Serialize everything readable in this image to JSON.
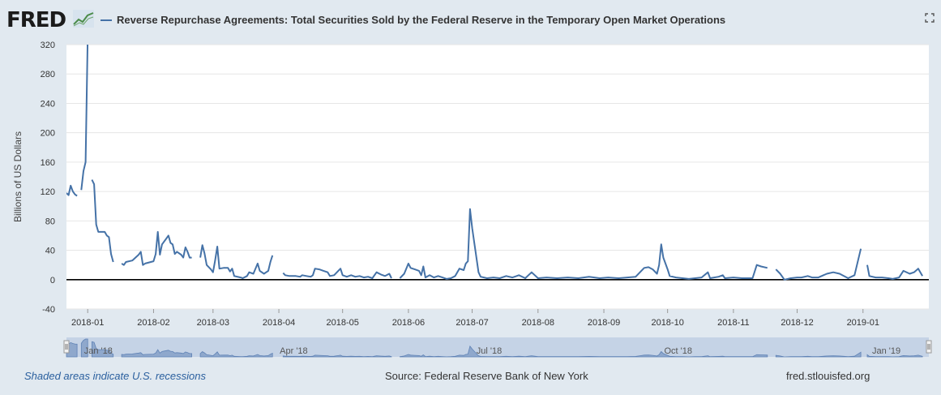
{
  "header": {
    "logo_text": "FRED",
    "logo_icon": "line-chart-icon",
    "series_title": "Reverse Repurchase Agreements: Total Securities Sold by the Federal Reserve in the Temporary Open Market Operations",
    "series_color": "#4572a7",
    "fullscreen_icon": "fullscreen-icon"
  },
  "footer": {
    "recession_note": "Shaded areas indicate U.S. recessions",
    "source": "Source: Federal Reserve Bank of New York",
    "site": "fred.stlouisfed.org"
  },
  "chart_data": {
    "type": "line",
    "title": "",
    "ylabel": "Billions of US Dollars",
    "xlabel": "",
    "ylim": [
      -40,
      320
    ],
    "yticks": [
      -40,
      0,
      40,
      80,
      120,
      160,
      200,
      240,
      280,
      320
    ],
    "xlim": [
      "2017-12-22",
      "2019-02-01"
    ],
    "xticks": [
      "2018-01",
      "2018-02",
      "2018-03",
      "2018-04",
      "2018-05",
      "2018-06",
      "2018-07",
      "2018-08",
      "2018-09",
      "2018-10",
      "2018-11",
      "2018-12",
      "2019-01"
    ],
    "navigator_labels": [
      {
        "label": "Jan '18",
        "date": "2018-01-06"
      },
      {
        "label": "Apr '18",
        "date": "2018-04-08"
      },
      {
        "label": "Jul '18",
        "date": "2018-07-09"
      },
      {
        "label": "Oct '18",
        "date": "2018-10-06"
      },
      {
        "label": "Jan '19",
        "date": "2019-01-12"
      }
    ],
    "grid": true,
    "zero_line": true,
    "series": [
      {
        "color": "#4572a7",
        "segments": [
          [
            [
              "2017-12-22",
              118
            ],
            [
              "2017-12-23",
              115
            ],
            [
              "2017-12-24",
              128
            ],
            [
              "2017-12-25",
              120
            ],
            [
              "2017-12-26",
              116
            ],
            [
              "2017-12-27",
              114
            ]
          ],
          [
            [
              "2017-12-29",
              122
            ],
            [
              "2017-12-30",
              148
            ],
            [
              "2017-12-31",
              160
            ],
            [
              "2018-01-01",
              330
            ]
          ],
          [
            [
              "2018-01-03",
              136
            ],
            [
              "2018-01-04",
              130
            ],
            [
              "2018-01-05",
              75
            ],
            [
              "2018-01-06",
              65
            ],
            [
              "2018-01-08",
              65
            ],
            [
              "2018-01-09",
              65
            ],
            [
              "2018-01-10",
              60
            ],
            [
              "2018-01-11",
              58
            ],
            [
              "2018-01-12",
              35
            ],
            [
              "2018-01-13",
              24
            ]
          ],
          [
            [
              "2018-01-17",
              22
            ],
            [
              "2018-01-18",
              20
            ],
            [
              "2018-01-19",
              24
            ],
            [
              "2018-01-22",
              26
            ],
            [
              "2018-01-25",
              34
            ],
            [
              "2018-01-26",
              38
            ],
            [
              "2018-01-27",
              20
            ],
            [
              "2018-01-28",
              22
            ],
            [
              "2018-02-01",
              25
            ],
            [
              "2018-02-02",
              35
            ],
            [
              "2018-02-03",
              65
            ],
            [
              "2018-02-04",
              34
            ],
            [
              "2018-02-05",
              48
            ],
            [
              "2018-02-07",
              56
            ],
            [
              "2018-02-08",
              60
            ],
            [
              "2018-02-09",
              50
            ],
            [
              "2018-02-10",
              48
            ],
            [
              "2018-02-11",
              35
            ],
            [
              "2018-02-12",
              38
            ],
            [
              "2018-02-14",
              34
            ],
            [
              "2018-02-15",
              30
            ],
            [
              "2018-02-16",
              44
            ],
            [
              "2018-02-17",
              38
            ],
            [
              "2018-02-18",
              30
            ],
            [
              "2018-02-19",
              30
            ]
          ],
          [
            [
              "2018-02-23",
              30
            ],
            [
              "2018-02-24",
              47
            ],
            [
              "2018-02-25",
              36
            ],
            [
              "2018-02-26",
              20
            ],
            [
              "2018-02-28",
              14
            ],
            [
              "2018-03-01",
              10
            ],
            [
              "2018-03-02",
              26
            ],
            [
              "2018-03-03",
              45
            ],
            [
              "2018-03-04",
              15
            ],
            [
              "2018-03-06",
              16
            ],
            [
              "2018-03-08",
              16
            ],
            [
              "2018-03-09",
              11
            ],
            [
              "2018-03-10",
              15
            ],
            [
              "2018-03-11",
              5
            ],
            [
              "2018-03-14",
              3
            ],
            [
              "2018-03-15",
              2
            ],
            [
              "2018-03-17",
              5
            ],
            [
              "2018-03-18",
              10
            ],
            [
              "2018-03-20",
              8
            ],
            [
              "2018-03-22",
              22
            ],
            [
              "2018-03-23",
              12
            ],
            [
              "2018-03-25",
              8
            ],
            [
              "2018-03-27",
              12
            ],
            [
              "2018-03-28",
              24
            ],
            [
              "2018-03-29",
              33
            ]
          ],
          [
            [
              "2018-04-03",
              9
            ],
            [
              "2018-04-04",
              6
            ],
            [
              "2018-04-06",
              5
            ],
            [
              "2018-04-09",
              5
            ],
            [
              "2018-04-11",
              4
            ],
            [
              "2018-04-12",
              6
            ],
            [
              "2018-04-14",
              5
            ],
            [
              "2018-04-16",
              4
            ],
            [
              "2018-04-17",
              6
            ],
            [
              "2018-04-18",
              15
            ],
            [
              "2018-04-20",
              14
            ],
            [
              "2018-04-22",
              12
            ],
            [
              "2018-04-24",
              10
            ],
            [
              "2018-04-25",
              5
            ],
            [
              "2018-04-27",
              6
            ],
            [
              "2018-04-29",
              12
            ],
            [
              "2018-04-30",
              15
            ],
            [
              "2018-05-01",
              6
            ],
            [
              "2018-05-03",
              4
            ],
            [
              "2018-05-05",
              6
            ],
            [
              "2018-05-07",
              4
            ],
            [
              "2018-05-09",
              5
            ],
            [
              "2018-05-11",
              3
            ],
            [
              "2018-05-13",
              4
            ],
            [
              "2018-05-15",
              2
            ],
            [
              "2018-05-17",
              10
            ],
            [
              "2018-05-19",
              7
            ],
            [
              "2018-05-21",
              5
            ],
            [
              "2018-05-23",
              8
            ],
            [
              "2018-05-24",
              2
            ]
          ],
          [
            [
              "2018-05-28",
              2
            ],
            [
              "2018-05-30",
              8
            ],
            [
              "2018-06-01",
              22
            ],
            [
              "2018-06-02",
              16
            ],
            [
              "2018-06-04",
              14
            ],
            [
              "2018-06-06",
              12
            ],
            [
              "2018-06-07",
              6
            ],
            [
              "2018-06-08",
              18
            ],
            [
              "2018-06-09",
              3
            ],
            [
              "2018-06-11",
              6
            ],
            [
              "2018-06-13",
              3
            ],
            [
              "2018-06-15",
              5
            ],
            [
              "2018-06-17",
              3
            ],
            [
              "2018-06-19",
              1
            ],
            [
              "2018-06-21",
              2
            ],
            [
              "2018-06-23",
              5
            ],
            [
              "2018-06-25",
              15
            ],
            [
              "2018-06-27",
              13
            ],
            [
              "2018-06-28",
              22
            ],
            [
              "2018-06-29",
              25
            ],
            [
              "2018-06-30",
              96
            ],
            [
              "2018-07-01",
              70
            ],
            [
              "2018-07-02",
              50
            ],
            [
              "2018-07-04",
              10
            ],
            [
              "2018-07-05",
              4
            ],
            [
              "2018-07-08",
              2
            ],
            [
              "2018-07-11",
              3
            ],
            [
              "2018-07-14",
              2
            ],
            [
              "2018-07-17",
              5
            ],
            [
              "2018-07-20",
              3
            ],
            [
              "2018-07-23",
              6
            ],
            [
              "2018-07-26",
              2
            ],
            [
              "2018-07-29",
              10
            ],
            [
              "2018-08-01",
              2
            ],
            [
              "2018-08-05",
              3
            ],
            [
              "2018-08-10",
              2
            ],
            [
              "2018-08-15",
              3
            ],
            [
              "2018-08-20",
              2
            ],
            [
              "2018-08-25",
              4
            ],
            [
              "2018-08-30",
              2
            ],
            [
              "2018-09-03",
              3
            ],
            [
              "2018-09-08",
              2
            ],
            [
              "2018-09-12",
              3
            ],
            [
              "2018-09-16",
              4
            ],
            [
              "2018-09-18",
              10
            ],
            [
              "2018-09-20",
              16
            ],
            [
              "2018-09-22",
              17
            ],
            [
              "2018-09-24",
              14
            ],
            [
              "2018-09-26",
              8
            ],
            [
              "2018-09-27",
              20
            ],
            [
              "2018-09-28",
              48
            ],
            [
              "2018-09-29",
              30
            ],
            [
              "2018-10-01",
              14
            ],
            [
              "2018-10-02",
              5
            ],
            [
              "2018-10-05",
              3
            ],
            [
              "2018-10-08",
              2
            ],
            [
              "2018-10-11",
              1
            ],
            [
              "2018-10-14",
              2
            ],
            [
              "2018-10-17",
              3
            ],
            [
              "2018-10-20",
              10
            ],
            [
              "2018-10-21",
              2
            ],
            [
              "2018-10-25",
              4
            ],
            [
              "2018-10-27",
              6
            ],
            [
              "2018-10-28",
              2
            ],
            [
              "2018-11-01",
              3
            ],
            [
              "2018-11-05",
              2
            ],
            [
              "2018-11-08",
              2
            ],
            [
              "2018-11-10",
              2
            ],
            [
              "2018-11-12",
              20
            ],
            [
              "2018-11-14",
              18
            ],
            [
              "2018-11-17",
              16
            ]
          ],
          [
            [
              "2018-11-21",
              14
            ],
            [
              "2018-11-23",
              8
            ],
            [
              "2018-11-25",
              0
            ],
            [
              "2018-11-28",
              2
            ],
            [
              "2018-12-01",
              3
            ],
            [
              "2018-12-03",
              3
            ],
            [
              "2018-12-06",
              5
            ],
            [
              "2018-12-08",
              3
            ],
            [
              "2018-12-11",
              3
            ],
            [
              "2018-12-15",
              8
            ],
            [
              "2018-12-18",
              10
            ],
            [
              "2018-12-21",
              8
            ],
            [
              "2018-12-25",
              2
            ],
            [
              "2018-12-28",
              6
            ],
            [
              "2018-12-31",
              42
            ]
          ],
          [
            [
              "2019-01-03",
              20
            ],
            [
              "2019-01-04",
              5
            ],
            [
              "2019-01-07",
              3
            ],
            [
              "2019-01-10",
              3
            ],
            [
              "2019-01-13",
              2
            ],
            [
              "2019-01-15",
              1
            ],
            [
              "2019-01-18",
              3
            ],
            [
              "2019-01-20",
              12
            ],
            [
              "2019-01-23",
              8
            ],
            [
              "2019-01-25",
              10
            ],
            [
              "2019-01-27",
              15
            ],
            [
              "2019-01-29",
              5
            ]
          ]
        ]
      }
    ]
  }
}
